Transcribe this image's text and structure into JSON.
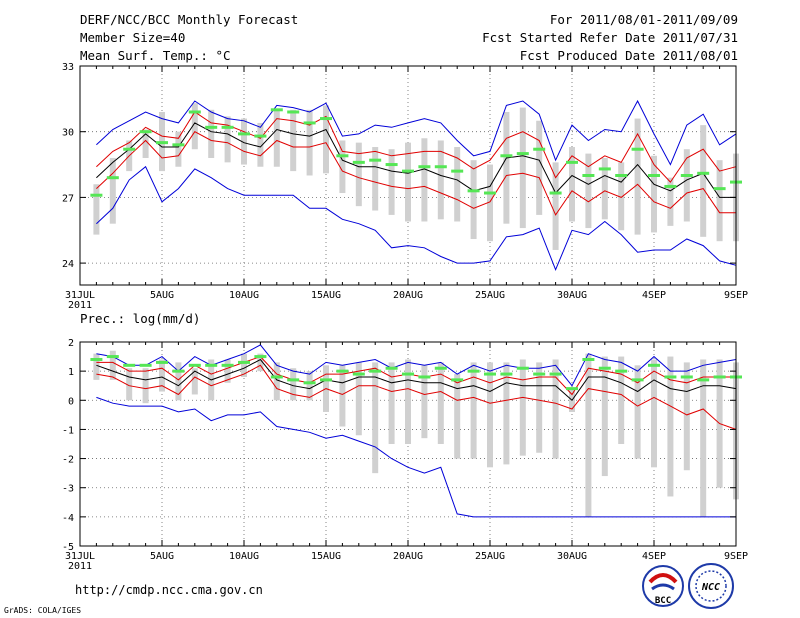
{
  "header": {
    "title": "DERF/NCC/BCC Monthly Forecast",
    "member_size": "Member Size=40",
    "variable": "Mean Surf. Temp.: °C",
    "period": "For 2011/08/01-2011/09/09",
    "started": "Fcst Started Refer Date 2011/07/31",
    "produced": "Fcst Produced Date 2011/08/01"
  },
  "footer": {
    "url": "http://cmdp.ncc.cma.gov.cn",
    "grads": "GrADS: COLA/IGES",
    "logo_bcc_text": "BCC",
    "logo_ncc_text": "NCC"
  },
  "colors": {
    "box": "#d0d0d0",
    "median": "#55e655",
    "mean": "#000000",
    "sd": "#e00000",
    "extreme": "#0000d8"
  },
  "chart_data": [
    {
      "type": "line",
      "title": "Mean Surf. Temp.: °C",
      "ylim": [
        23,
        33
      ],
      "yticks": [
        24,
        27,
        30,
        33
      ],
      "xticks": [
        {
          "day": 0,
          "label": "31JUL",
          "sub": "2011"
        },
        {
          "day": 5,
          "label": "5AUG"
        },
        {
          "day": 10,
          "label": "10AUG"
        },
        {
          "day": 15,
          "label": "15AUG"
        },
        {
          "day": 20,
          "label": "20AUG"
        },
        {
          "day": 25,
          "label": "25AUG"
        },
        {
          "day": 30,
          "label": "30AUG"
        },
        {
          "day": 35,
          "label": "4SEP"
        },
        {
          "day": 40,
          "label": "9SEP"
        }
      ],
      "x_days": [
        1,
        2,
        3,
        4,
        5,
        6,
        7,
        8,
        9,
        10,
        11,
        12,
        13,
        14,
        15,
        16,
        17,
        18,
        19,
        20,
        21,
        22,
        23,
        24,
        25,
        26,
        27,
        28,
        29,
        30,
        31,
        32,
        33,
        34,
        35,
        36,
        37,
        38,
        39,
        40
      ],
      "series": [
        {
          "name": "max",
          "values": [
            29.4,
            30.1,
            30.5,
            30.9,
            30.6,
            30.4,
            31.4,
            30.9,
            30.6,
            30.5,
            30.2,
            31.2,
            31.1,
            30.9,
            31.3,
            29.8,
            29.9,
            30.3,
            30.2,
            30.4,
            30.6,
            30.4,
            29.6,
            28.9,
            29.1,
            31.2,
            31.4,
            30.8,
            28.7,
            30.3,
            29.6,
            30.1,
            30.0,
            31.4,
            29.9,
            28.5,
            30.3,
            30.8,
            29.4,
            29.9
          ]
        },
        {
          "name": "upper_sd",
          "values": [
            28.4,
            29.1,
            29.5,
            30.2,
            29.8,
            29.7,
            30.9,
            30.4,
            30.3,
            30.0,
            29.7,
            30.6,
            30.5,
            30.3,
            30.7,
            29.1,
            29.0,
            29.1,
            28.9,
            29.0,
            29.1,
            29.1,
            28.8,
            28.3,
            28.7,
            29.7,
            30.0,
            29.6,
            27.9,
            28.9,
            28.4,
            28.9,
            28.6,
            29.9,
            28.5,
            27.7,
            28.8,
            29.2,
            28.2,
            28.4
          ]
        },
        {
          "name": "mean",
          "values": [
            27.9,
            28.6,
            29.2,
            29.9,
            29.3,
            29.3,
            30.4,
            30.0,
            29.9,
            29.5,
            29.3,
            30.1,
            29.9,
            29.8,
            30.1,
            28.7,
            28.4,
            28.4,
            28.2,
            28.1,
            28.3,
            28.0,
            27.8,
            27.3,
            27.5,
            28.8,
            28.9,
            28.7,
            27.2,
            28.0,
            27.6,
            28.0,
            27.7,
            28.5,
            27.6,
            27.3,
            27.8,
            28.1,
            27.0,
            27.0
          ]
        },
        {
          "name": "lower_sd",
          "values": [
            27.4,
            28.1,
            28.9,
            29.6,
            28.8,
            28.9,
            30.0,
            29.6,
            29.5,
            29.1,
            28.9,
            29.6,
            29.3,
            29.3,
            29.5,
            28.2,
            27.9,
            27.7,
            27.5,
            27.4,
            27.5,
            27.2,
            26.9,
            26.5,
            26.8,
            28.0,
            28.1,
            27.9,
            26.2,
            27.3,
            26.8,
            27.3,
            27.0,
            27.6,
            26.8,
            26.5,
            27.2,
            27.4,
            26.3,
            26.3
          ]
        },
        {
          "name": "min",
          "values": [
            25.8,
            26.5,
            27.8,
            28.4,
            26.8,
            27.4,
            28.3,
            27.9,
            27.4,
            27.1,
            27.1,
            27.1,
            27.1,
            26.5,
            26.5,
            26.0,
            25.8,
            25.5,
            24.7,
            24.8,
            24.7,
            24.3,
            24.0,
            24.0,
            24.1,
            25.2,
            25.3,
            25.6,
            23.7,
            25.5,
            25.3,
            25.9,
            25.3,
            24.5,
            24.6,
            24.6,
            25.1,
            24.8,
            24.1,
            23.9
          ]
        },
        {
          "name": "median",
          "values": [
            27.1,
            27.9,
            29.2,
            30.0,
            29.5,
            29.4,
            30.9,
            30.2,
            30.2,
            29.9,
            29.8,
            31.0,
            30.9,
            30.4,
            30.6,
            28.9,
            28.6,
            28.7,
            28.5,
            28.2,
            28.4,
            28.4,
            28.2,
            27.3,
            27.2,
            28.9,
            29.0,
            29.2,
            27.2,
            28.6,
            28.0,
            28.3,
            28.0,
            29.2,
            28.0,
            27.5,
            28.0,
            28.1,
            27.4,
            27.7
          ]
        },
        {
          "name": "box_high",
          "values": [
            27.6,
            28.8,
            29.6,
            30.1,
            30.9,
            30.0,
            31.3,
            31.0,
            30.7,
            30.6,
            30.4,
            31.0,
            31.0,
            31.0,
            31.2,
            29.6,
            29.5,
            29.3,
            29.2,
            29.5,
            29.7,
            29.6,
            29.3,
            28.7,
            28.5,
            30.9,
            31.1,
            30.5,
            28.6,
            29.3,
            29.0,
            28.8,
            28.6,
            30.6,
            28.9,
            27.9,
            29.2,
            30.3,
            28.7,
            29.0
          ]
        },
        {
          "name": "box_low",
          "values": [
            25.3,
            25.8,
            28.2,
            28.8,
            28.2,
            28.4,
            29.2,
            28.8,
            28.6,
            28.5,
            28.4,
            28.4,
            28.2,
            28.0,
            28.1,
            27.2,
            26.6,
            26.4,
            26.2,
            25.9,
            25.9,
            26.0,
            25.9,
            25.1,
            25.0,
            25.8,
            25.6,
            26.2,
            24.6,
            25.9,
            25.6,
            26.0,
            25.5,
            25.3,
            25.4,
            25.7,
            25.9,
            25.2,
            25.0,
            25.0
          ]
        }
      ]
    },
    {
      "type": "line",
      "title": "Prec.: log(mm/d)",
      "ylim": [
        -5,
        2
      ],
      "yticks": [
        -5,
        -4,
        -3,
        -2,
        -1,
        0,
        1,
        2
      ],
      "xticks": [
        {
          "day": 0,
          "label": "31JUL",
          "sub": "2011"
        },
        {
          "day": 5,
          "label": "5AUG"
        },
        {
          "day": 10,
          "label": "10AUG"
        },
        {
          "day": 15,
          "label": "15AUG"
        },
        {
          "day": 20,
          "label": "20AUG"
        },
        {
          "day": 25,
          "label": "25AUG"
        },
        {
          "day": 30,
          "label": "30AUG"
        },
        {
          "day": 35,
          "label": "4SEP"
        },
        {
          "day": 40,
          "label": "9SEP"
        }
      ],
      "x_days": [
        1,
        2,
        3,
        4,
        5,
        6,
        7,
        8,
        9,
        10,
        11,
        12,
        13,
        14,
        15,
        16,
        17,
        18,
        19,
        20,
        21,
        22,
        23,
        24,
        25,
        26,
        27,
        28,
        29,
        30,
        31,
        32,
        33,
        34,
        35,
        36,
        37,
        38,
        39,
        40
      ],
      "series": [
        {
          "name": "max",
          "values": [
            1.6,
            1.5,
            1.2,
            1.2,
            1.5,
            1.0,
            1.5,
            1.2,
            1.4,
            1.6,
            1.9,
            1.2,
            1.0,
            0.9,
            1.3,
            1.2,
            1.3,
            1.4,
            1.1,
            1.3,
            1.2,
            1.3,
            0.9,
            1.2,
            1.0,
            1.2,
            1.1,
            1.1,
            1.2,
            0.5,
            1.6,
            1.4,
            1.3,
            1.0,
            1.5,
            1.0,
            1.0,
            1.2,
            1.3,
            1.4
          ]
        },
        {
          "name": "upper_sd",
          "values": [
            1.3,
            1.3,
            1.0,
            1.0,
            1.1,
            0.7,
            1.2,
            0.9,
            1.1,
            1.3,
            1.5,
            0.9,
            0.7,
            0.6,
            0.9,
            0.9,
            1.0,
            1.1,
            0.8,
            0.9,
            0.8,
            0.9,
            0.6,
            0.8,
            0.6,
            0.8,
            0.7,
            0.8,
            0.8,
            0.2,
            1.1,
            1.0,
            0.9,
            0.6,
            1.0,
            0.7,
            0.6,
            0.8,
            0.8,
            0.8
          ]
        },
        {
          "name": "mean",
          "values": [
            1.2,
            1.0,
            0.8,
            0.7,
            0.8,
            0.5,
            1.0,
            0.7,
            0.9,
            1.1,
            1.4,
            0.7,
            0.5,
            0.4,
            0.7,
            0.6,
            0.8,
            0.8,
            0.6,
            0.7,
            0.6,
            0.6,
            0.4,
            0.5,
            0.3,
            0.6,
            0.5,
            0.5,
            0.5,
            0.0,
            0.8,
            0.8,
            0.6,
            0.3,
            0.7,
            0.4,
            0.3,
            0.5,
            0.5,
            0.4
          ]
        },
        {
          "name": "lower_sd",
          "values": [
            0.9,
            0.8,
            0.5,
            0.4,
            0.5,
            0.2,
            0.8,
            0.5,
            0.7,
            0.9,
            1.2,
            0.4,
            0.2,
            0.1,
            0.4,
            0.2,
            0.5,
            0.5,
            0.3,
            0.4,
            0.2,
            0.3,
            0.0,
            0.1,
            -0.1,
            0.0,
            0.1,
            0.0,
            -0.1,
            -0.3,
            0.4,
            0.3,
            0.2,
            -0.2,
            0.1,
            -0.2,
            -0.5,
            -0.3,
            -0.8,
            -1.0
          ]
        },
        {
          "name": "min",
          "values": [
            0.1,
            -0.1,
            -0.2,
            -0.2,
            -0.2,
            -0.4,
            -0.3,
            -0.7,
            -0.5,
            -0.5,
            -0.4,
            -0.9,
            -1.0,
            -1.1,
            -1.3,
            -1.2,
            -1.4,
            -1.6,
            -2.0,
            -2.3,
            -2.5,
            -2.3,
            -3.9,
            -4.0,
            -4.0,
            -4.0,
            -4.0,
            -4.0,
            -4.0,
            -4.0,
            -4.0,
            -4.0,
            -4.0,
            -4.0,
            -4.0,
            -4.0,
            -4.0,
            -4.0,
            -4.0,
            -4.0
          ]
        },
        {
          "name": "median",
          "values": [
            1.4,
            1.5,
            1.2,
            1.2,
            1.3,
            1.0,
            1.2,
            1.2,
            1.2,
            1.3,
            1.5,
            0.8,
            0.7,
            0.6,
            0.7,
            1.0,
            0.9,
            1.0,
            1.1,
            0.9,
            0.8,
            1.1,
            0.7,
            1.0,
            0.9,
            0.9,
            1.1,
            0.9,
            0.9,
            0.4,
            1.4,
            1.1,
            1.0,
            0.7,
            1.2,
            0.8,
            0.8,
            0.7,
            0.8,
            0.8
          ]
        },
        {
          "name": "box_high",
          "values": [
            1.6,
            1.7,
            1.1,
            1.1,
            1.4,
            1.3,
            1.1,
            1.4,
            1.4,
            1.6,
            1.6,
            1.3,
            1.1,
            1.0,
            1.2,
            1.2,
            1.3,
            1.3,
            1.3,
            1.4,
            1.2,
            1.3,
            0.9,
            1.3,
            1.3,
            1.3,
            1.4,
            1.3,
            1.4,
            0.4,
            1.6,
            1.5,
            1.5,
            1.2,
            1.4,
            1.5,
            1.3,
            1.4,
            1.4,
            1.3
          ]
        },
        {
          "name": "box_low",
          "values": [
            0.7,
            0.7,
            0.0,
            -0.1,
            0.3,
            0.0,
            0.2,
            0.0,
            0.6,
            0.8,
            1.0,
            0.0,
            0.0,
            0.0,
            -0.4,
            -0.9,
            -1.2,
            -2.5,
            -1.5,
            -1.5,
            -1.3,
            -1.5,
            -2.0,
            -2.0,
            -2.3,
            -2.2,
            -1.9,
            -1.8,
            -2.0,
            -0.4,
            -4.0,
            -2.6,
            -1.5,
            -2.0,
            -2.3,
            -3.3,
            -2.4,
            -4.0,
            -3.0,
            -3.4
          ]
        }
      ]
    }
  ]
}
